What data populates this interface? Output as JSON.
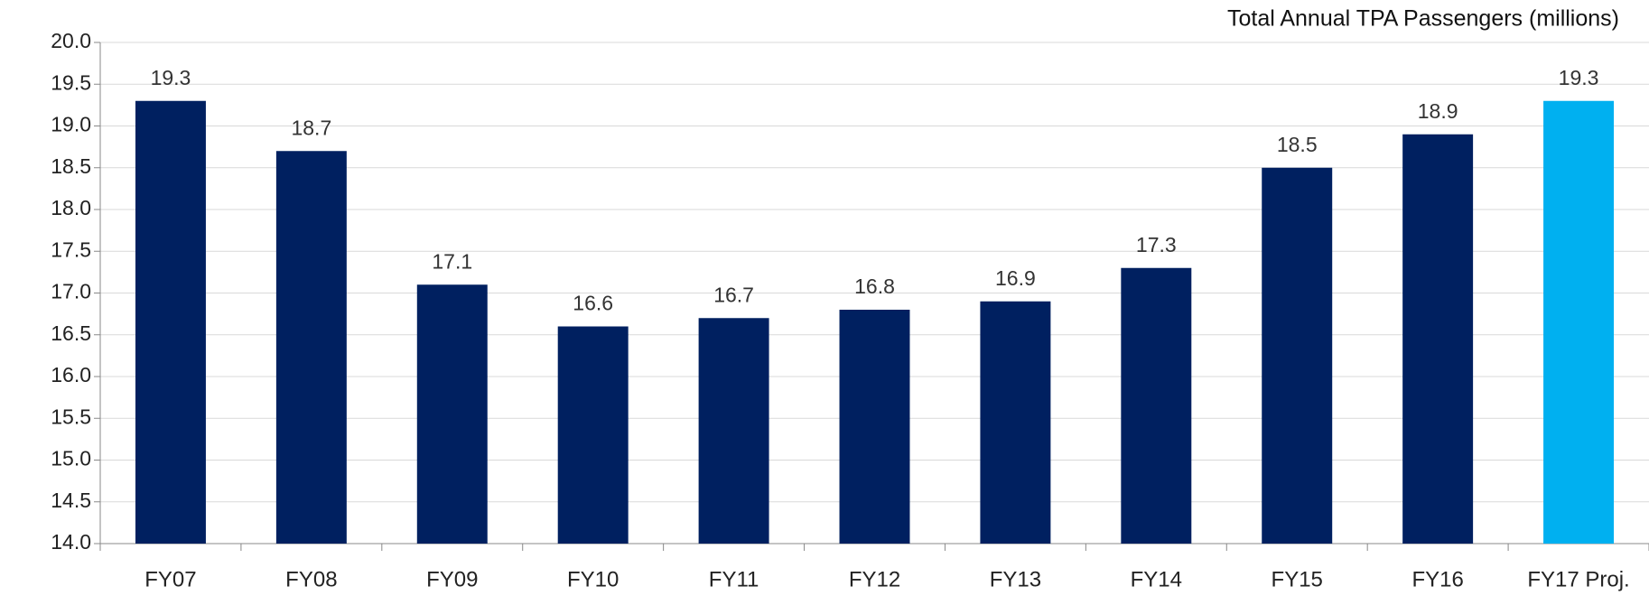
{
  "chart_data": {
    "type": "bar",
    "title": "Total Annual TPA Passengers (millions)",
    "categories": [
      "FY07",
      "FY08",
      "FY09",
      "FY10",
      "FY11",
      "FY12",
      "FY13",
      "FY14",
      "FY15",
      "FY16",
      "FY17 Proj."
    ],
    "values": [
      19.3,
      18.7,
      17.1,
      16.6,
      16.7,
      16.8,
      16.9,
      17.3,
      18.5,
      18.9,
      19.3
    ],
    "colors": [
      "#002060",
      "#002060",
      "#002060",
      "#002060",
      "#002060",
      "#002060",
      "#002060",
      "#002060",
      "#002060",
      "#002060",
      "#00b0f0"
    ],
    "ylim": [
      14,
      20
    ],
    "yticks": [
      {
        "value": 14,
        "label": "14.0"
      },
      14.5,
      {
        "value": 15,
        "label": "15.0"
      },
      15.5,
      {
        "value": 16,
        "label": "16.0"
      },
      16.5,
      {
        "value": 17,
        "label": "17.0"
      },
      17.5,
      {
        "value": 18,
        "label": "18.0"
      },
      18.5,
      {
        "value": 19,
        "label": "19.0"
      },
      19.5,
      {
        "value": 20,
        "label": "20.0"
      }
    ],
    "grid": true
  }
}
